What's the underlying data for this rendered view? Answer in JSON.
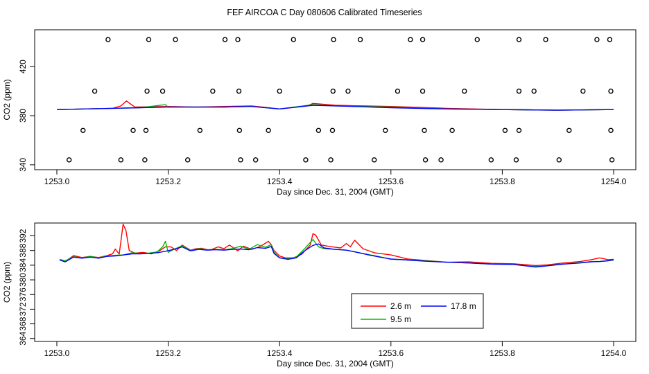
{
  "title": "FEF AIRCOA C  Day 080606  Calibrated Timeseries",
  "colors": {
    "red": "#ff0000",
    "green": "#00bb00",
    "blue": "#0000ff",
    "axis": "#000000"
  },
  "chart_data": [
    {
      "type": "line",
      "name": "top",
      "xlabel": "Day since Dec. 31, 2004 (GMT)",
      "ylabel": "CO2 (ppm)",
      "xlim": [
        1253.0,
        1254.0
      ],
      "ylim": [
        336,
        450
      ],
      "xticks": [
        1253.0,
        1253.2,
        1253.4,
        1253.6,
        1253.8,
        1254.0
      ],
      "xtick_labels": [
        "1253.0",
        "1253.2",
        "1253.4",
        "1253.6",
        "1253.8",
        "1254.0"
      ],
      "yticks": [
        340,
        380,
        420
      ],
      "ytick_labels": [
        "340",
        "380",
        "420"
      ],
      "series": [
        {
          "color": "#ff0000",
          "x": [
            1253.0,
            1253.05,
            1253.1,
            1253.115,
            1253.125,
            1253.14,
            1253.2,
            1253.25,
            1253.3,
            1253.35,
            1253.4,
            1253.45,
            1253.46,
            1253.5,
            1253.6,
            1253.7,
            1253.8,
            1253.9,
            1254.0
          ],
          "y": [
            385,
            385.5,
            386,
            388,
            392,
            387,
            387.5,
            387,
            387.5,
            388,
            385.5,
            388,
            390,
            388.5,
            387.5,
            386,
            385,
            384.5,
            385
          ]
        },
        {
          "color": "#00bb00",
          "x": [
            1253.0,
            1253.05,
            1253.1,
            1253.15,
            1253.195,
            1253.2,
            1253.25,
            1253.3,
            1253.35,
            1253.4,
            1253.46,
            1253.5,
            1253.6,
            1253.7,
            1253.8,
            1253.9,
            1254.0
          ],
          "y": [
            385,
            385.5,
            386,
            386.5,
            389,
            387,
            387,
            387,
            387.5,
            385.5,
            389,
            388,
            387,
            385.5,
            385,
            384.5,
            385
          ]
        },
        {
          "color": "#0000ff",
          "x": [
            1253.0,
            1253.05,
            1253.1,
            1253.15,
            1253.2,
            1253.25,
            1253.3,
            1253.35,
            1253.4,
            1253.46,
            1253.5,
            1253.6,
            1253.7,
            1253.8,
            1253.9,
            1254.0
          ],
          "y": [
            385,
            385.5,
            386,
            386.5,
            387,
            387,
            387,
            387.5,
            385.5,
            388.5,
            388,
            386.5,
            385.5,
            385,
            384.5,
            385
          ]
        }
      ],
      "scatter_rows": [
        {
          "y": 442,
          "x": [
            1253.092,
            1253.165,
            1253.213,
            1253.302,
            1253.325,
            1253.425,
            1253.497,
            1253.545,
            1253.635,
            1253.657,
            1253.755,
            1253.83,
            1253.878,
            1253.97,
            1253.993
          ]
        },
        {
          "y": 400,
          "x": [
            1253.068,
            1253.162,
            1253.19,
            1253.28,
            1253.327,
            1253.4,
            1253.496,
            1253.523,
            1253.612,
            1253.657,
            1253.732,
            1253.83,
            1253.857,
            1253.945,
            1253.995
          ]
        },
        {
          "y": 368,
          "x": [
            1253.047,
            1253.137,
            1253.16,
            1253.257,
            1253.328,
            1253.38,
            1253.47,
            1253.495,
            1253.59,
            1253.66,
            1253.71,
            1253.805,
            1253.83,
            1253.92,
            1253.995
          ]
        },
        {
          "y": 344,
          "x": [
            1253.022,
            1253.115,
            1253.158,
            1253.235,
            1253.33,
            1253.357,
            1253.447,
            1253.492,
            1253.57,
            1253.662,
            1253.69,
            1253.78,
            1253.825,
            1253.902,
            1253.997
          ]
        }
      ]
    },
    {
      "type": "line",
      "name": "bottom",
      "xlabel": "Day since Dec. 31, 2004 (GMT)",
      "ylabel": "CO2 (ppm)",
      "xlim": [
        1253.0,
        1254.0
      ],
      "ylim": [
        363.2,
        395.5
      ],
      "xticks": [
        1253.0,
        1253.2,
        1253.4,
        1253.6,
        1253.8,
        1254.0
      ],
      "xtick_labels": [
        "1253.0",
        "1253.2",
        "1253.4",
        "1253.6",
        "1253.8",
        "1254.0"
      ],
      "yticks": [
        364,
        368,
        372,
        376,
        380,
        384,
        388,
        392
      ],
      "ytick_labels": [
        "364",
        "368",
        "372",
        "376",
        "380",
        "384",
        "388",
        "392"
      ],
      "legend": {
        "position": "center-right"
      },
      "series": [
        {
          "name": "2.6 m",
          "color": "#ff0000",
          "x": [
            1253.005,
            1253.015,
            1253.03,
            1253.045,
            1253.06,
            1253.075,
            1253.09,
            1253.1,
            1253.105,
            1253.112,
            1253.119,
            1253.124,
            1253.13,
            1253.14,
            1253.155,
            1253.17,
            1253.185,
            1253.195,
            1253.205,
            1253.215,
            1253.225,
            1253.24,
            1253.25,
            1253.26,
            1253.275,
            1253.29,
            1253.3,
            1253.31,
            1253.325,
            1253.335,
            1253.35,
            1253.365,
            1253.38,
            1253.385,
            1253.39,
            1253.4,
            1253.41,
            1253.425,
            1253.44,
            1253.455,
            1253.46,
            1253.465,
            1253.475,
            1253.49,
            1253.51,
            1253.52,
            1253.527,
            1253.535,
            1253.55,
            1253.57,
            1253.6,
            1253.63,
            1253.66,
            1253.7,
            1253.74,
            1253.78,
            1253.82,
            1253.86,
            1253.88,
            1253.91,
            1253.94,
            1253.96,
            1253.975,
            1253.99,
            1254.0
          ],
          "y": [
            385.5,
            385,
            386.6,
            386.1,
            386.4,
            386.1,
            386.6,
            387.1,
            388.4,
            387,
            395.2,
            393.5,
            388,
            387.3,
            387.5,
            387.1,
            388,
            389,
            389,
            388,
            389.5,
            388.1,
            388.5,
            388.6,
            388.1,
            389,
            388.5,
            389.5,
            387.9,
            389.2,
            388.3,
            389.1,
            390.5,
            389.6,
            388,
            386.5,
            386,
            386,
            387,
            389.5,
            392.6,
            392.2,
            389.5,
            389.1,
            388.7,
            389.9,
            389,
            390.8,
            388.5,
            387.4,
            386.8,
            385.7,
            385.3,
            384.8,
            384.9,
            384.5,
            384.4,
            383.9,
            384.1,
            384.6,
            385,
            385.5,
            386,
            385.5,
            385.6
          ]
        },
        {
          "name": "9.5 m",
          "color": "#00bb00",
          "x": [
            1253.005,
            1253.015,
            1253.03,
            1253.045,
            1253.06,
            1253.075,
            1253.09,
            1253.105,
            1253.12,
            1253.135,
            1253.15,
            1253.165,
            1253.18,
            1253.19,
            1253.195,
            1253.2,
            1253.21,
            1253.225,
            1253.24,
            1253.255,
            1253.27,
            1253.285,
            1253.3,
            1253.315,
            1253.33,
            1253.345,
            1253.36,
            1253.375,
            1253.385,
            1253.39,
            1253.4,
            1253.415,
            1253.43,
            1253.445,
            1253.455,
            1253.46,
            1253.47,
            1253.48,
            1253.5,
            1253.52,
            1253.54,
            1253.56,
            1253.58,
            1253.6,
            1253.63,
            1253.66,
            1253.7,
            1253.74,
            1253.78,
            1253.82,
            1253.86,
            1253.88,
            1253.91,
            1253.94,
            1253.96,
            1253.975,
            1253.99,
            1254.0
          ],
          "y": [
            385.6,
            385.2,
            386.3,
            386,
            386.4,
            386,
            386.5,
            386.7,
            386.8,
            387.4,
            387.2,
            387.3,
            387.6,
            389,
            390.5,
            387.5,
            388.3,
            389.3,
            388,
            388.5,
            388.2,
            388.3,
            388.2,
            388.5,
            389.2,
            388.3,
            389.6,
            388.9,
            389.6,
            387.5,
            386,
            385.8,
            386.2,
            388.5,
            390.2,
            391,
            389,
            388.5,
            388.3,
            388.1,
            387.5,
            386.9,
            386.3,
            385.6,
            385.5,
            385.2,
            384.8,
            384.6,
            384.3,
            384.2,
            383.6,
            383.9,
            384.3,
            384.7,
            385,
            385,
            385.2,
            385.4
          ]
        },
        {
          "name": "17.8 m",
          "color": "#0000ff",
          "x": [
            1253.005,
            1253.015,
            1253.03,
            1253.045,
            1253.06,
            1253.075,
            1253.09,
            1253.105,
            1253.12,
            1253.135,
            1253.15,
            1253.165,
            1253.18,
            1253.195,
            1253.21,
            1253.225,
            1253.24,
            1253.255,
            1253.27,
            1253.285,
            1253.3,
            1253.315,
            1253.33,
            1253.345,
            1253.36,
            1253.375,
            1253.385,
            1253.39,
            1253.4,
            1253.415,
            1253.43,
            1253.445,
            1253.46,
            1253.47,
            1253.48,
            1253.5,
            1253.52,
            1253.54,
            1253.56,
            1253.58,
            1253.6,
            1253.63,
            1253.66,
            1253.7,
            1253.74,
            1253.78,
            1253.82,
            1253.86,
            1253.88,
            1253.91,
            1253.94,
            1253.96,
            1253.975,
            1253.99,
            1254.0
          ],
          "y": [
            385.4,
            384.9,
            386.2,
            385.9,
            386.2,
            385.9,
            386.4,
            386.5,
            386.8,
            387.1,
            387.1,
            387.2,
            387.4,
            387.8,
            388.3,
            389,
            387.9,
            388.3,
            388.1,
            388.2,
            388.1,
            388.3,
            388.4,
            388.2,
            388.8,
            388.6,
            389.1,
            387.2,
            386,
            385.6,
            386,
            387.9,
            389.4,
            389.8,
            388.7,
            388.3,
            388.1,
            387.5,
            386.8,
            386.2,
            385.7,
            385.4,
            385.1,
            384.8,
            384.6,
            384.3,
            384.2,
            383.5,
            383.8,
            384.3,
            384.6,
            384.9,
            385,
            385.2,
            385.5
          ]
        }
      ]
    }
  ]
}
